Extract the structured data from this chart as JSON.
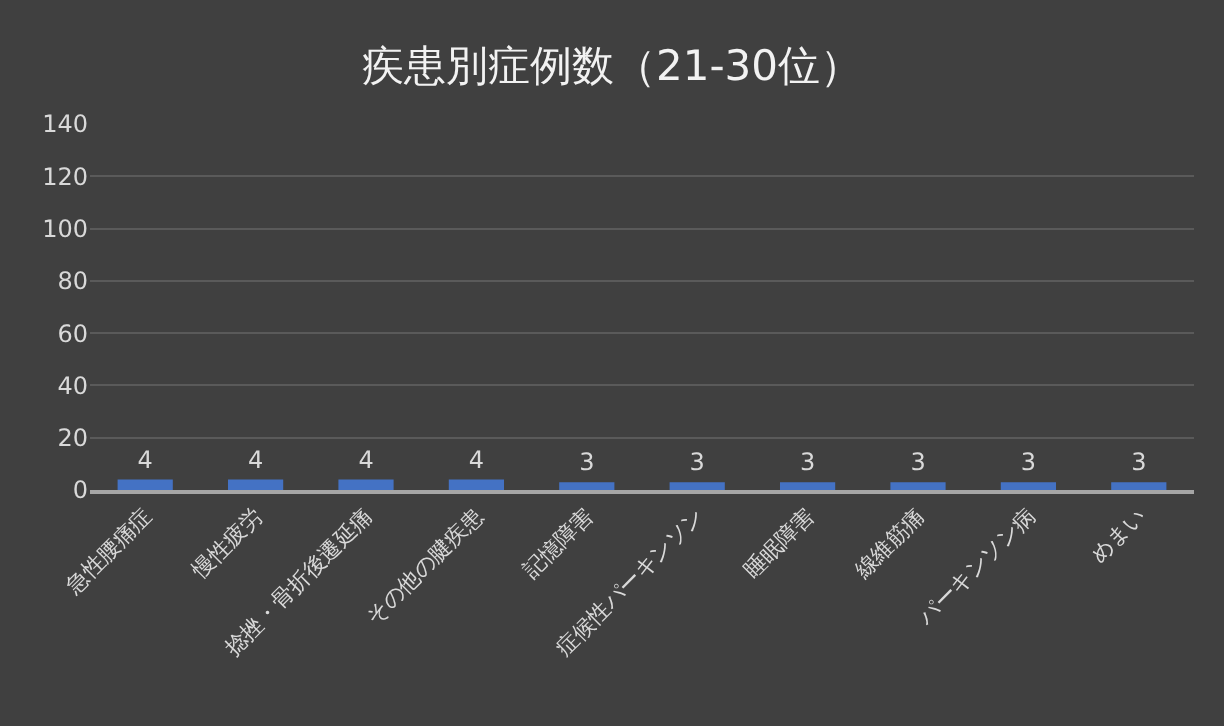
{
  "chart_data": {
    "type": "bar",
    "title": "疾患別症例数（21-30位）",
    "categories": [
      "急性腰痛症",
      "慢性疲労",
      "捻挫・骨折後遷延痛",
      "その他の腱疾患",
      "記憶障害",
      "症候性パーキンソン",
      "睡眠障害",
      "線維筋痛",
      "パーキンソン病",
      "めまい"
    ],
    "values": [
      4,
      4,
      4,
      4,
      3,
      3,
      3,
      3,
      3,
      3
    ],
    "color": "#4472c4",
    "ylim": [
      0,
      140
    ],
    "yticks": [
      0,
      20,
      40,
      60,
      80,
      100,
      120,
      140
    ],
    "grid": "y",
    "data_labels": true
  }
}
